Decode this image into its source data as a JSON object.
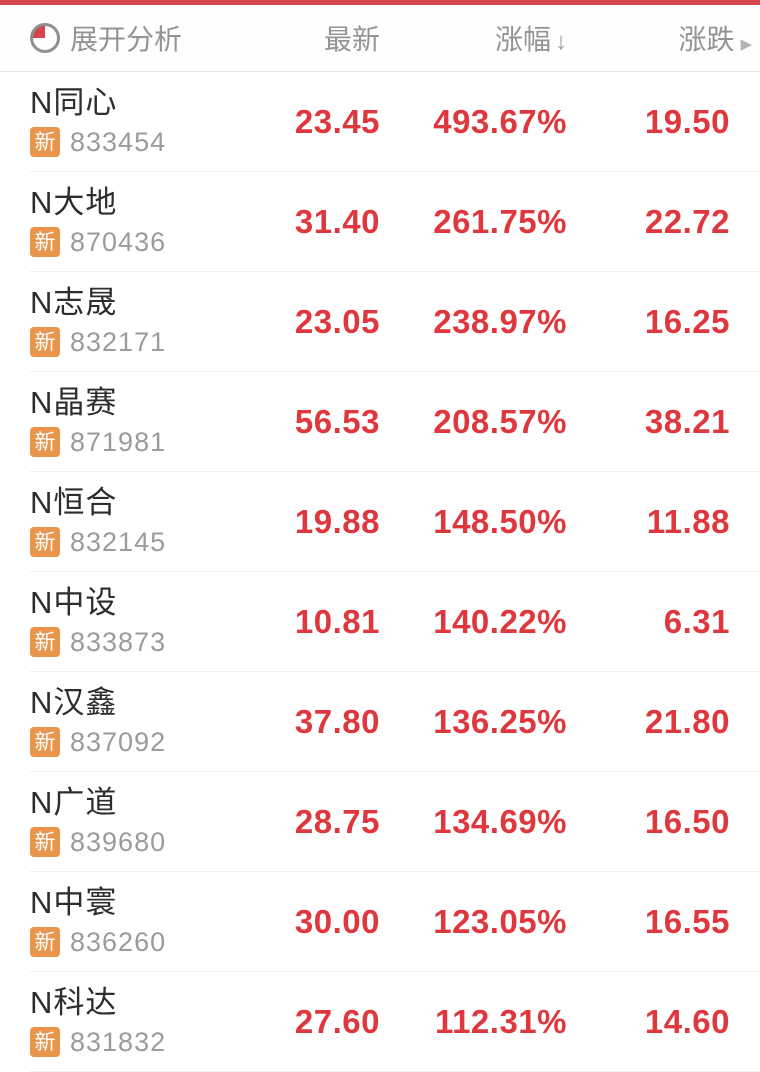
{
  "colors": {
    "accent_red": "#d5454c",
    "value_red": "#de383e",
    "badge_orange": "#e8964b",
    "header_gray": "#949494"
  },
  "header": {
    "expand_label": "展开分析",
    "pie_icon": "pie-chart-icon",
    "columns": {
      "latest": "最新",
      "pct_change": "涨幅",
      "pct_sort_arrow": "↓",
      "change": "涨跌",
      "more_chevron": "▶"
    }
  },
  "rows": [
    {
      "name": "N同心",
      "badge": "新",
      "code": "833454",
      "latest": "23.45",
      "pct": "493.67%",
      "chg": "19.50"
    },
    {
      "name": "N大地",
      "badge": "新",
      "code": "870436",
      "latest": "31.40",
      "pct": "261.75%",
      "chg": "22.72"
    },
    {
      "name": "N志晟",
      "badge": "新",
      "code": "832171",
      "latest": "23.05",
      "pct": "238.97%",
      "chg": "16.25"
    },
    {
      "name": "N晶赛",
      "badge": "新",
      "code": "871981",
      "latest": "56.53",
      "pct": "208.57%",
      "chg": "38.21"
    },
    {
      "name": "N恒合",
      "badge": "新",
      "code": "832145",
      "latest": "19.88",
      "pct": "148.50%",
      "chg": "11.88"
    },
    {
      "name": "N中设",
      "badge": "新",
      "code": "833873",
      "latest": "10.81",
      "pct": "140.22%",
      "chg": "6.31"
    },
    {
      "name": "N汉鑫",
      "badge": "新",
      "code": "837092",
      "latest": "37.80",
      "pct": "136.25%",
      "chg": "21.80"
    },
    {
      "name": "N广道",
      "badge": "新",
      "code": "839680",
      "latest": "28.75",
      "pct": "134.69%",
      "chg": "16.50"
    },
    {
      "name": "N中寰",
      "badge": "新",
      "code": "836260",
      "latest": "30.00",
      "pct": "123.05%",
      "chg": "16.55"
    },
    {
      "name": "N科达",
      "badge": "新",
      "code": "831832",
      "latest": "27.60",
      "pct": "112.31%",
      "chg": "14.60"
    }
  ]
}
